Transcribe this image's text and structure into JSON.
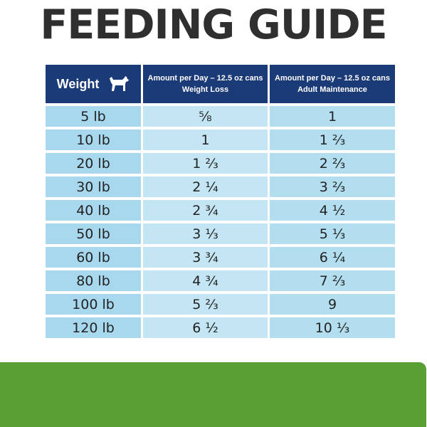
{
  "title": "FEEDING GUIDE",
  "header": {
    "weight_label": "Weight",
    "weight_icon": "dog-icon",
    "col2_line1": "Amount per Day – 12.5 oz cans",
    "col2_line2": "Weight Loss",
    "col3_line1": "Amount per Day – 12.5 oz cans",
    "col3_line2": "Adult Maintenance"
  },
  "rows": [
    {
      "weight": "5 lb",
      "weight_loss": "⅝",
      "maintenance": "1"
    },
    {
      "weight": "10 lb",
      "weight_loss": "1",
      "maintenance": "1 ⅔"
    },
    {
      "weight": "20 lb",
      "weight_loss": "1 ⅔",
      "maintenance": "2 ⅔"
    },
    {
      "weight": "30 lb",
      "weight_loss": "2 ¼",
      "maintenance": "3 ⅔"
    },
    {
      "weight": "40 lb",
      "weight_loss": "2 ¾",
      "maintenance": "4 ½"
    },
    {
      "weight": "50 lb",
      "weight_loss": "3 ⅓",
      "maintenance": "5 ⅓"
    },
    {
      "weight": "60 lb",
      "weight_loss": "3 ¾",
      "maintenance": "6 ¼"
    },
    {
      "weight": "80 lb",
      "weight_loss": "4 ¾",
      "maintenance": "7 ⅔"
    },
    {
      "weight": "100 lb",
      "weight_loss": "5 ⅔",
      "maintenance": "9"
    },
    {
      "weight": "120 lb",
      "weight_loss": "6 ½",
      "maintenance": "10 ⅓"
    }
  ],
  "colors": {
    "title": "#2f2f2f",
    "header_bg": "#1b3a78",
    "weight_cell": "#a8d8ee",
    "loss_cell": "#c4e5f3",
    "maint_cell": "#b3deef",
    "footer_band": "#5a9f34"
  }
}
